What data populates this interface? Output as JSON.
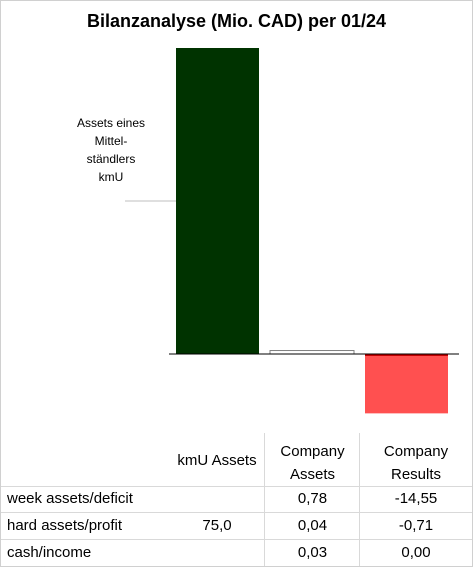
{
  "title": "Bilanzanalyse  (Mio. CAD) per 01/24",
  "annotation": [
    "Assets eines",
    "Mittel-",
    "ständlers",
    "kmU"
  ],
  "colors": {
    "kmU Assets": "#003300",
    "Company Assets": "#ffffff",
    "Company Results": "#ff5050",
    "negative_top_edge": "#c00000"
  },
  "chart_data": {
    "type": "bar",
    "title": "Bilanzanalyse  (Mio. CAD) per 01/24",
    "categories": [
      "kmU Assets",
      "Company Assets",
      "Company Results"
    ],
    "values": [
      75.0,
      0.85,
      -14.55
    ],
    "ylim": [
      -15,
      80
    ],
    "grid": false,
    "legend": "table below chart"
  },
  "table": {
    "headers": [
      {
        "line1": "kmU Assets",
        "line2": ""
      },
      {
        "line1": "Company",
        "line2": "Assets"
      },
      {
        "line1": "Company",
        "line2": "Results"
      }
    ],
    "rows": [
      {
        "label": "week assets/deficit",
        "values": [
          "",
          "0,78",
          "-14,55"
        ]
      },
      {
        "label": "hard assets/profit",
        "values": [
          "75,0",
          "0,04",
          "-0,71"
        ]
      },
      {
        "label": "cash/income",
        "values": [
          "",
          "0,03",
          "0,00"
        ]
      }
    ]
  }
}
